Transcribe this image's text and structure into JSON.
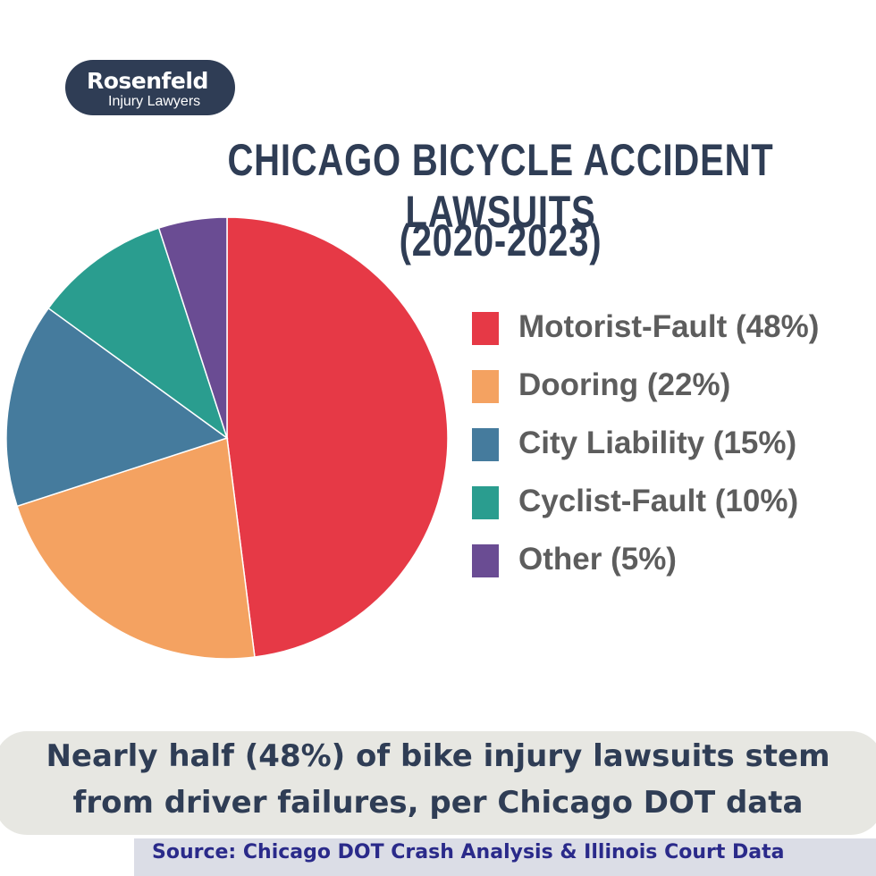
{
  "logo": {
    "name": "Rosenfeld",
    "subtitle": "Injury Lawyers"
  },
  "title": {
    "line1": "CHICAGO BICYCLE ACCIDENT LAWSUITS",
    "line2": "(2020-2023)"
  },
  "chart_data": {
    "type": "pie",
    "title": "CHICAGO BICYCLE ACCIDENT LAWSUITS (2020-2023)",
    "legend_position": "right",
    "slices": [
      {
        "label": "Motorist-Fault (48%)",
        "value": 48,
        "color": "#e63946"
      },
      {
        "label": "Dooring (22%)",
        "value": 22,
        "color": "#f4a261"
      },
      {
        "label": "City Liability (15%)",
        "value": 15,
        "color": "#457b9d"
      },
      {
        "label": "Cyclist-Fault (10%)",
        "value": 10,
        "color": "#2a9d8f"
      },
      {
        "label": "Other (5%)",
        "value": 5,
        "color": "#6a4c93"
      }
    ]
  },
  "caption": {
    "line1": "Nearly half (48%) of bike injury lawsuits stem",
    "line2": "from driver failures, per Chicago DOT data"
  },
  "source": "Source: Chicago DOT Crash Analysis & Illinois Court Data"
}
